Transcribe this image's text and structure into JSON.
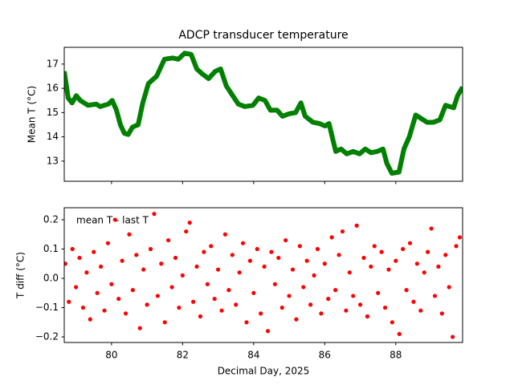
{
  "chart_data": [
    {
      "type": "line",
      "title": "ADCP transducer temperature",
      "y_label": "Mean T (°C)",
      "color": "#008000",
      "x": [
        78.67,
        78.78,
        78.89,
        79.01,
        79.12,
        79.34,
        79.57,
        79.68,
        79.91,
        80.02,
        80.14,
        80.25,
        80.36,
        80.47,
        80.59,
        80.75,
        80.88,
        81.04,
        81.27,
        81.49,
        81.72,
        81.88,
        82.06,
        82.24,
        82.4,
        82.55,
        82.73,
        82.92,
        83.07,
        83.23,
        83.41,
        83.57,
        83.75,
        83.98,
        84.14,
        84.32,
        84.47,
        84.66,
        84.81,
        84.99,
        85.18,
        85.33,
        85.45,
        85.67,
        85.85,
        86.01,
        86.12,
        86.31,
        86.46,
        86.62,
        86.8,
        86.98,
        87.14,
        87.3,
        87.48,
        87.64,
        87.75,
        87.89,
        88.09,
        88.23,
        88.38,
        88.56,
        88.72,
        88.88,
        89.06,
        89.24,
        89.4,
        89.63,
        89.74,
        89.88
      ],
      "values": [
        16.7,
        15.6,
        15.4,
        15.7,
        15.5,
        15.3,
        15.35,
        15.25,
        15.35,
        15.5,
        15.1,
        14.5,
        14.15,
        14.1,
        14.4,
        14.5,
        15.4,
        16.2,
        16.5,
        17.2,
        17.25,
        17.2,
        17.45,
        17.4,
        16.8,
        16.6,
        16.4,
        16.7,
        16.8,
        16.1,
        15.7,
        15.35,
        15.25,
        15.3,
        15.6,
        15.5,
        15.1,
        15.1,
        14.85,
        14.95,
        15.0,
        15.4,
        14.85,
        14.6,
        14.55,
        14.45,
        14.55,
        13.4,
        13.5,
        13.3,
        13.4,
        13.3,
        13.5,
        13.35,
        13.4,
        13.5,
        12.9,
        12.5,
        12.55,
        13.5,
        14.0,
        14.9,
        14.75,
        14.6,
        14.6,
        14.7,
        15.3,
        15.2,
        15.7,
        16.05
      ],
      "xlim": [
        78.67,
        89.88
      ],
      "xticks": [
        80,
        82,
        84,
        86,
        88
      ],
      "ylim": [
        12.17,
        17.69
      ],
      "yticks": [
        13,
        14,
        15,
        16,
        17
      ]
    },
    {
      "type": "scatter",
      "y_label": "T diff (°C)",
      "x_label": "Decimal Day, 2025",
      "annotation": "mean T - last T",
      "color": "#ff0000",
      "x": [
        78.7,
        78.8,
        78.9,
        79.0,
        79.1,
        79.2,
        79.3,
        79.4,
        79.5,
        79.6,
        79.7,
        79.8,
        79.9,
        80.0,
        80.1,
        80.2,
        80.3,
        80.4,
        80.5,
        80.6,
        80.7,
        80.8,
        80.9,
        81.0,
        81.1,
        81.2,
        81.3,
        81.4,
        81.5,
        81.6,
        81.7,
        81.8,
        81.9,
        82.0,
        82.1,
        82.2,
        82.3,
        82.4,
        82.5,
        82.6,
        82.7,
        82.8,
        82.9,
        83.0,
        83.1,
        83.2,
        83.3,
        83.4,
        83.5,
        83.6,
        83.7,
        83.8,
        83.9,
        84.0,
        84.1,
        84.2,
        84.3,
        84.4,
        84.5,
        84.6,
        84.7,
        84.8,
        84.9,
        85.0,
        85.1,
        85.2,
        85.3,
        85.4,
        85.5,
        85.6,
        85.7,
        85.8,
        85.9,
        86.0,
        86.1,
        86.2,
        86.3,
        86.4,
        86.5,
        86.6,
        86.7,
        86.8,
        86.9,
        87.0,
        87.1,
        87.2,
        87.3,
        87.4,
        87.5,
        87.6,
        87.7,
        87.8,
        87.9,
        88.0,
        88.1,
        88.2,
        88.3,
        88.4,
        88.5,
        88.6,
        88.7,
        88.8,
        88.9,
        89.0,
        89.1,
        89.2,
        89.3,
        89.4,
        89.5,
        89.6,
        89.7,
        89.8
      ],
      "values": [
        0.05,
        -0.08,
        0.1,
        -0.03,
        0.07,
        -0.1,
        0.02,
        -0.14,
        0.09,
        -0.05,
        0.04,
        -0.11,
        0.12,
        -0.02,
        0.2,
        -0.07,
        0.06,
        -0.12,
        0.15,
        -0.04,
        0.08,
        -0.17,
        0.03,
        -0.09,
        0.1,
        0.22,
        -0.06,
        0.05,
        -0.15,
        0.13,
        -0.03,
        0.07,
        -0.1,
        0.01,
        0.16,
        0.19,
        -0.08,
        0.04,
        -0.13,
        0.09,
        -0.02,
        0.11,
        -0.07,
        0.03,
        -0.11,
        0.15,
        -0.04,
        0.08,
        -0.09,
        0.02,
        0.12,
        -0.15,
        0.06,
        -0.05,
        0.1,
        -0.12,
        0.04,
        -0.18,
        0.09,
        -0.02,
        0.07,
        -0.1,
        0.13,
        -0.06,
        0.03,
        -0.14,
        0.11,
        -0.03,
        0.06,
        -0.09,
        0.01,
        0.1,
        -0.12,
        0.05,
        -0.07,
        0.14,
        -0.04,
        0.08,
        0.16,
        -0.11,
        0.02,
        -0.06,
        0.18,
        -0.09,
        0.07,
        -0.13,
        0.04,
        0.11,
        -0.05,
        0.09,
        -0.1,
        0.03,
        -0.15,
        0.06,
        -0.19,
        0.1,
        -0.04,
        0.12,
        -0.08,
        0.05,
        -0.11,
        0.02,
        0.09,
        0.17,
        -0.06,
        0.04,
        -0.12,
        0.08,
        -0.03,
        -0.2,
        0.11,
        0.14
      ],
      "xlim": [
        78.67,
        89.88
      ],
      "xticks": [
        80,
        82,
        84,
        86,
        88
      ],
      "ylim": [
        -0.219,
        0.241
      ],
      "yticks": [
        {
          "value": -0.2,
          "label": "−0.2"
        },
        {
          "value": -0.1,
          "label": "−0.1"
        },
        {
          "value": 0,
          "label": "0.0"
        },
        0.1,
        0.2
      ]
    }
  ]
}
